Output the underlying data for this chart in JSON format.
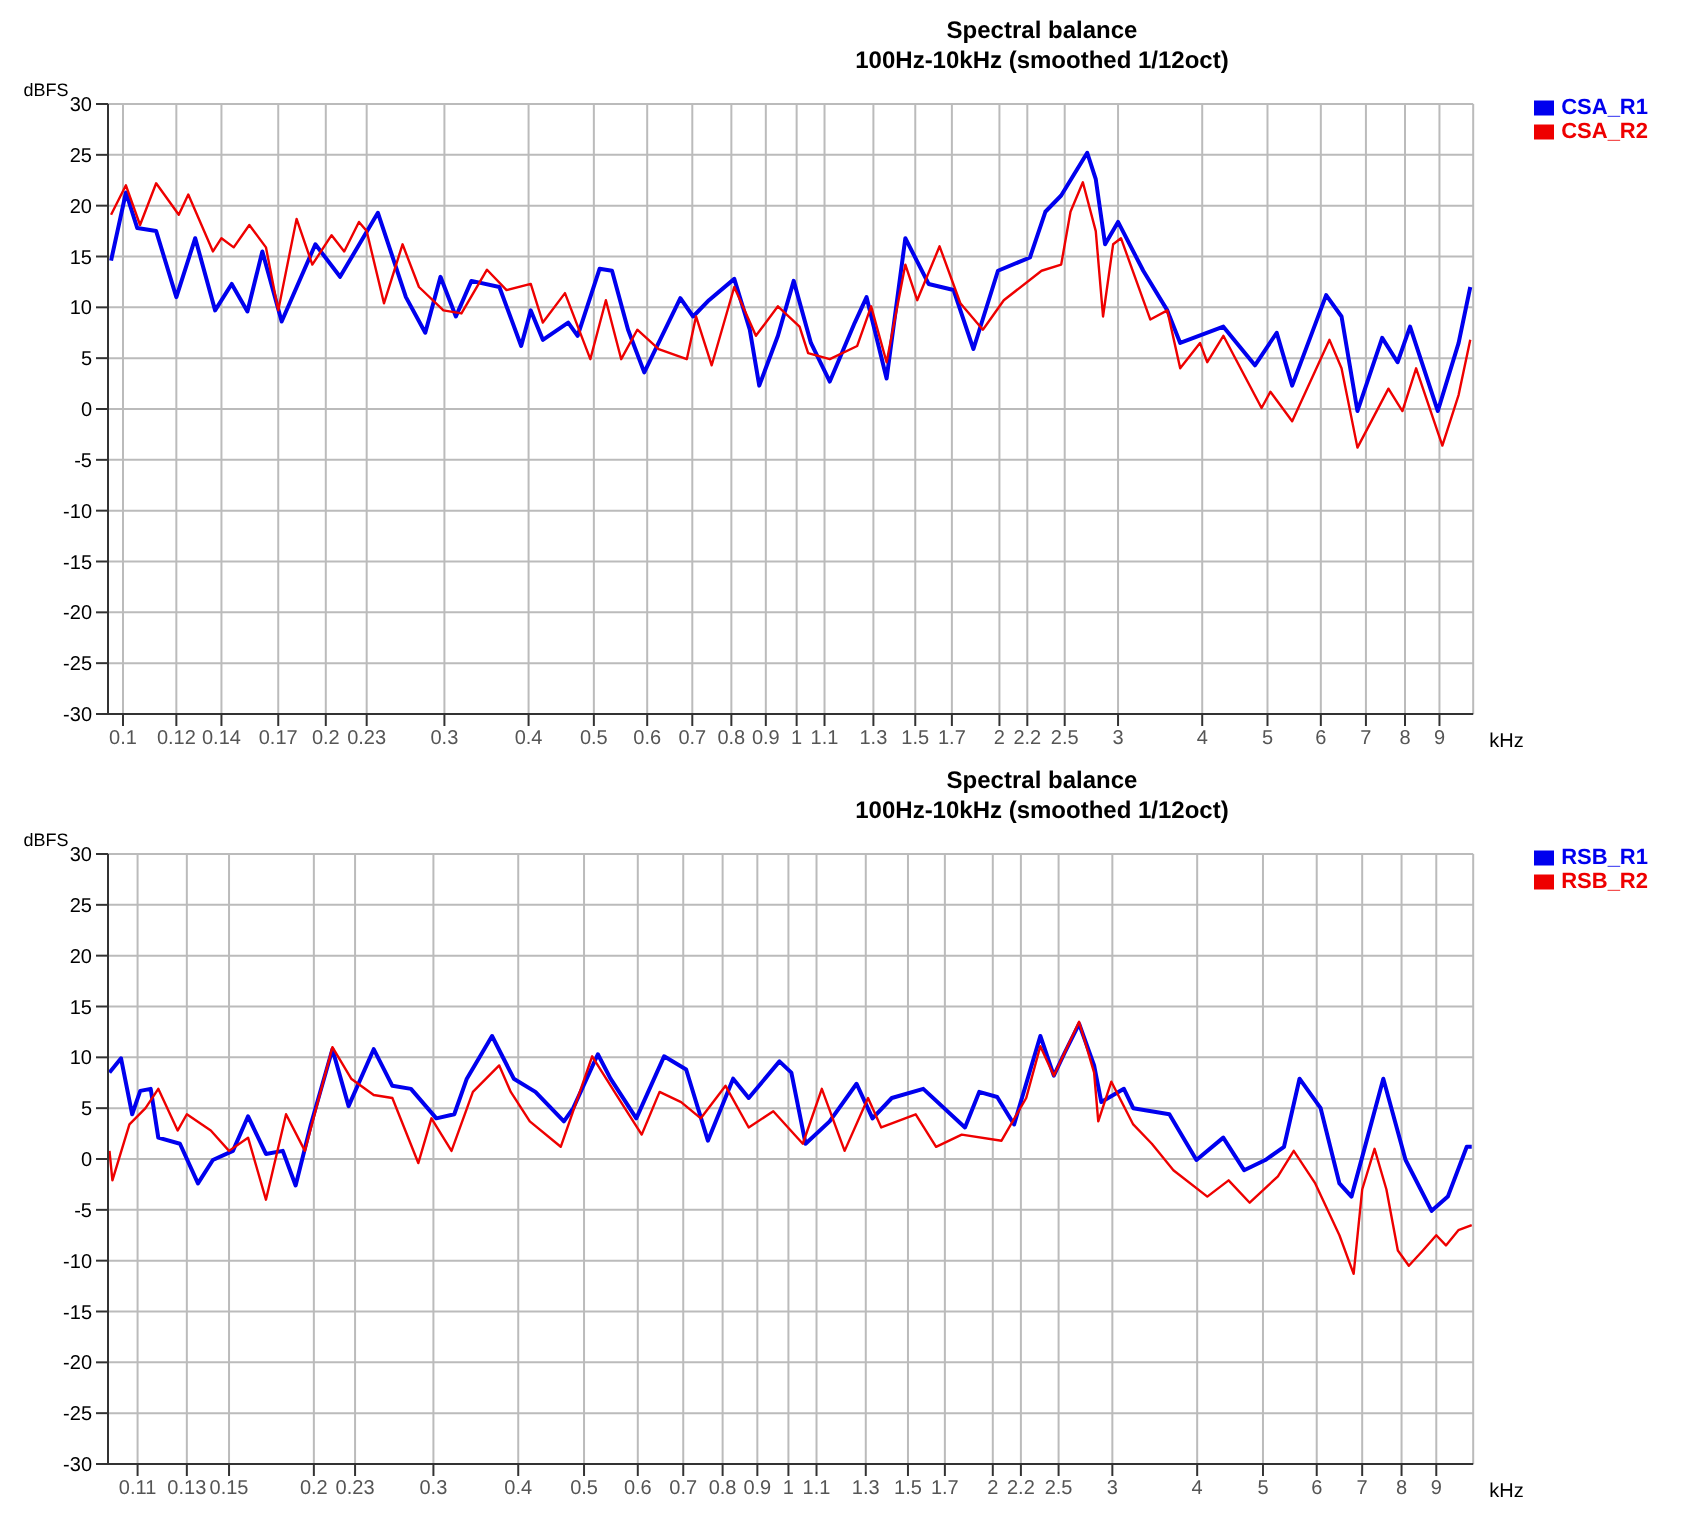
{
  "chart_data": [
    {
      "type": "line",
      "title": "Spectral balance",
      "subtitle": "100Hz-10kHz (smoothed 1/12oct)",
      "xlabel": "kHz",
      "ylabel": "dBFS",
      "log": "x",
      "grid": true,
      "legend": "top right",
      "marker": "none",
      "line_style": "solid",
      "xlim": [
        0.095,
        10.1
      ],
      "xticks": [
        0.1,
        0.12,
        0.14,
        0.17,
        0.2,
        0.23,
        0.3,
        0.4,
        0.5,
        0.6,
        0.7,
        0.8,
        0.9,
        1,
        1.1,
        1.3,
        1.5,
        1.7,
        2,
        2.2,
        2.5,
        3,
        4,
        5,
        6,
        7,
        8,
        9
      ],
      "ylim": [
        -30,
        30
      ],
      "yticks": [
        -30,
        -25,
        -20,
        -15,
        -10,
        -5,
        0,
        5,
        10,
        15,
        20,
        25,
        30
      ],
      "series": [
        {
          "name": "CSA_R1",
          "color": "#0000ee",
          "x": [
            0.096,
            0.101,
            0.105,
            0.112,
            0.12,
            0.128,
            0.137,
            0.145,
            0.153,
            0.161,
            0.172,
            0.193,
            0.21,
            0.239,
            0.263,
            0.281,
            0.296,
            0.312,
            0.329,
            0.362,
            0.39,
            0.403,
            0.42,
            0.458,
            0.473,
            0.51,
            0.532,
            0.562,
            0.594,
            0.672,
            0.702,
            0.741,
            0.808,
            0.852,
            0.88,
            0.938,
            0.99,
            1.05,
            1.12,
            1.22,
            1.27,
            1.36,
            1.45,
            1.57,
            1.71,
            1.83,
            1.99,
            2.22,
            2.34,
            2.47,
            2.7,
            2.78,
            2.87,
            3.0,
            3.27,
            3.55,
            3.71,
            4.3,
            4.79,
            5.16,
            5.44,
            6.11,
            6.44,
            6.8,
            7.4,
            7.8,
            8.14,
            8.95,
            9.61,
            10.0
          ],
          "values": [
            14.6,
            21.3,
            17.8,
            17.5,
            11.0,
            16.8,
            9.7,
            12.3,
            9.6,
            15.5,
            8.6,
            16.2,
            13.0,
            19.3,
            11.0,
            7.5,
            13.0,
            9.1,
            12.6,
            12.0,
            6.2,
            9.7,
            6.8,
            8.5,
            7.2,
            13.8,
            13.6,
            7.8,
            3.6,
            10.9,
            9.1,
            10.7,
            12.8,
            7.8,
            2.3,
            7.2,
            12.6,
            6.5,
            2.7,
            8.5,
            11.0,
            3.0,
            16.8,
            12.3,
            11.7,
            5.9,
            13.6,
            14.9,
            19.4,
            21.0,
            25.2,
            22.6,
            16.2,
            18.4,
            13.6,
            9.7,
            6.5,
            8.1,
            4.3,
            7.5,
            2.3,
            11.2,
            9.1,
            -0.2,
            7.0,
            4.6,
            8.1,
            -0.2,
            6.5,
            12.0
          ]
        },
        {
          "name": "CSA_R2",
          "color": "#ee0000",
          "x": [
            0.096,
            0.101,
            0.106,
            0.112,
            0.121,
            0.125,
            0.136,
            0.14,
            0.146,
            0.154,
            0.163,
            0.17,
            0.181,
            0.191,
            0.204,
            0.213,
            0.224,
            0.23,
            0.244,
            0.26,
            0.275,
            0.299,
            0.318,
            0.347,
            0.371,
            0.403,
            0.42,
            0.453,
            0.494,
            0.521,
            0.549,
            0.58,
            0.624,
            0.687,
            0.709,
            0.748,
            0.808,
            0.87,
            0.938,
            1.01,
            1.04,
            1.12,
            1.23,
            1.29,
            1.36,
            1.45,
            1.51,
            1.63,
            1.75,
            1.89,
            2.03,
            2.31,
            2.47,
            2.55,
            2.66,
            2.78,
            2.85,
            2.95,
            3.03,
            3.35,
            3.55,
            3.71,
            3.97,
            4.07,
            4.3,
            4.9,
            5.05,
            5.44,
            6.18,
            6.44,
            6.8,
            7.56,
            7.93,
            8.31,
            9.09,
            9.61,
            10.0
          ],
          "values": [
            19.1,
            22.0,
            18.1,
            22.2,
            19.1,
            21.1,
            15.5,
            16.8,
            15.9,
            18.1,
            15.9,
            9.7,
            18.7,
            14.2,
            17.1,
            15.5,
            18.4,
            17.5,
            10.4,
            16.2,
            12.0,
            9.7,
            9.4,
            13.7,
            11.7,
            12.3,
            8.5,
            11.4,
            4.9,
            10.7,
            4.9,
            7.8,
            5.9,
            4.9,
            9.1,
            4.3,
            12.0,
            7.2,
            10.1,
            8.1,
            5.5,
            4.9,
            6.2,
            10.1,
            4.6,
            14.2,
            10.7,
            16.0,
            10.4,
            7.8,
            10.7,
            13.6,
            14.2,
            19.4,
            22.3,
            17.5,
            9.1,
            16.2,
            16.8,
            8.8,
            9.7,
            4.0,
            6.5,
            4.6,
            7.2,
            0.1,
            1.7,
            -1.2,
            6.8,
            4.0,
            -3.8,
            2.0,
            -0.2,
            4.0,
            -3.6,
            1.4,
            6.8
          ]
        }
      ]
    },
    {
      "type": "line",
      "title": "Spectral balance",
      "subtitle": "100Hz-10kHz (smoothed 1/12oct)",
      "xlabel": "kHz",
      "ylabel": "dBFS",
      "log": "x",
      "grid": true,
      "legend": "top right",
      "marker": "none",
      "line_style": "solid",
      "xlim": [
        0.0995,
        10.2
      ],
      "xticks": [
        0.11,
        0.13,
        0.15,
        0.2,
        0.23,
        0.3,
        0.4,
        0.5,
        0.6,
        0.7,
        0.8,
        0.9,
        1,
        1.1,
        1.3,
        1.5,
        1.7,
        2,
        2.2,
        2.5,
        3,
        4,
        5,
        6,
        7,
        8,
        9
      ],
      "ylim": [
        -30,
        30
      ],
      "yticks": [
        -30,
        -25,
        -20,
        -15,
        -10,
        -5,
        0,
        5,
        10,
        15,
        20,
        25,
        30
      ],
      "series": [
        {
          "name": "RSB_R1",
          "color": "#0000ee",
          "x": [
            0.1,
            0.104,
            0.108,
            0.111,
            0.115,
            0.118,
            0.127,
            0.135,
            0.142,
            0.152,
            0.16,
            0.17,
            0.18,
            0.188,
            0.198,
            0.213,
            0.225,
            0.245,
            0.261,
            0.278,
            0.303,
            0.322,
            0.336,
            0.366,
            0.394,
            0.424,
            0.467,
            0.482,
            0.524,
            0.547,
            0.597,
            0.656,
            0.707,
            0.761,
            0.829,
            0.874,
            0.97,
            1.01,
            1.06,
            1.15,
            1.26,
            1.33,
            1.42,
            1.58,
            1.82,
            1.91,
            2.03,
            2.15,
            2.35,
            2.46,
            2.55,
            2.68,
            2.82,
            2.89,
            3.12,
            3.22,
            3.64,
            3.99,
            4.37,
            4.69,
            5.04,
            5.37,
            5.66,
            6.08,
            6.48,
            6.75,
            7.04,
            7.52,
            8.11,
            8.86,
            9.36,
            9.98,
            10.15
          ],
          "values": [
            8.5,
            9.9,
            4.4,
            6.7,
            6.9,
            2.1,
            1.5,
            -2.4,
            -0.1,
            0.8,
            4.2,
            0.5,
            0.8,
            -2.6,
            3.4,
            10.8,
            5.2,
            10.8,
            7.2,
            6.9,
            4.0,
            4.4,
            7.9,
            12.1,
            7.9,
            6.6,
            3.7,
            5.0,
            10.3,
            7.9,
            4.0,
            10.1,
            8.8,
            1.8,
            7.9,
            6.0,
            9.6,
            8.5,
            1.5,
            3.7,
            7.4,
            4.0,
            6.0,
            6.9,
            3.1,
            6.6,
            6.1,
            3.4,
            12.1,
            8.2,
            10.4,
            13.3,
            9.2,
            5.6,
            6.9,
            5.0,
            4.4,
            -0.1,
            2.1,
            -1.1,
            -0.1,
            1.2,
            7.9,
            5.0,
            -2.4,
            -3.7,
            0.8,
            7.9,
            -0.1,
            -5.1,
            -3.7,
            1.2,
            1.2
          ]
        },
        {
          "name": "RSB_R2",
          "color": "#ee0000",
          "x": [
            0.1,
            0.101,
            0.107,
            0.113,
            0.118,
            0.126,
            0.13,
            0.141,
            0.15,
            0.16,
            0.17,
            0.182,
            0.194,
            0.213,
            0.227,
            0.245,
            0.261,
            0.285,
            0.298,
            0.319,
            0.343,
            0.375,
            0.39,
            0.416,
            0.462,
            0.514,
            0.558,
            0.608,
            0.646,
            0.695,
            0.743,
            0.808,
            0.874,
            0.95,
            1.05,
            1.12,
            1.21,
            1.31,
            1.37,
            1.54,
            1.65,
            1.8,
            2.06,
            2.24,
            2.35,
            2.46,
            2.68,
            2.82,
            2.86,
            2.99,
            3.22,
            3.43,
            3.69,
            4.14,
            4.45,
            4.78,
            5.26,
            5.55,
            5.97,
            6.48,
            6.8,
            7.0,
            7.3,
            7.6,
            7.9,
            8.2,
            8.6,
            9.0,
            9.3,
            9.7,
            10.15
          ],
          "values": [
            0.8,
            -2.1,
            3.4,
            5.0,
            6.9,
            2.8,
            4.4,
            2.8,
            0.8,
            2.1,
            -4.0,
            4.4,
            0.8,
            11.0,
            7.9,
            6.3,
            6.0,
            -0.4,
            4.0,
            0.8,
            6.6,
            9.2,
            6.6,
            3.7,
            1.2,
            10.1,
            6.3,
            2.4,
            6.6,
            5.6,
            4.0,
            7.2,
            3.1,
            4.7,
            1.5,
            6.9,
            0.8,
            6.0,
            3.1,
            4.4,
            1.2,
            2.4,
            1.8,
            6.0,
            11.1,
            8.2,
            13.5,
            8.5,
            3.7,
            7.6,
            3.4,
            1.5,
            -1.1,
            -3.7,
            -2.1,
            -4.3,
            -1.7,
            0.8,
            -2.4,
            -7.5,
            -11.3,
            -3.0,
            1.0,
            -3.0,
            -9.0,
            -10.5,
            -9.0,
            -7.5,
            -8.5,
            -7.0,
            -6.5
          ]
        }
      ]
    }
  ]
}
